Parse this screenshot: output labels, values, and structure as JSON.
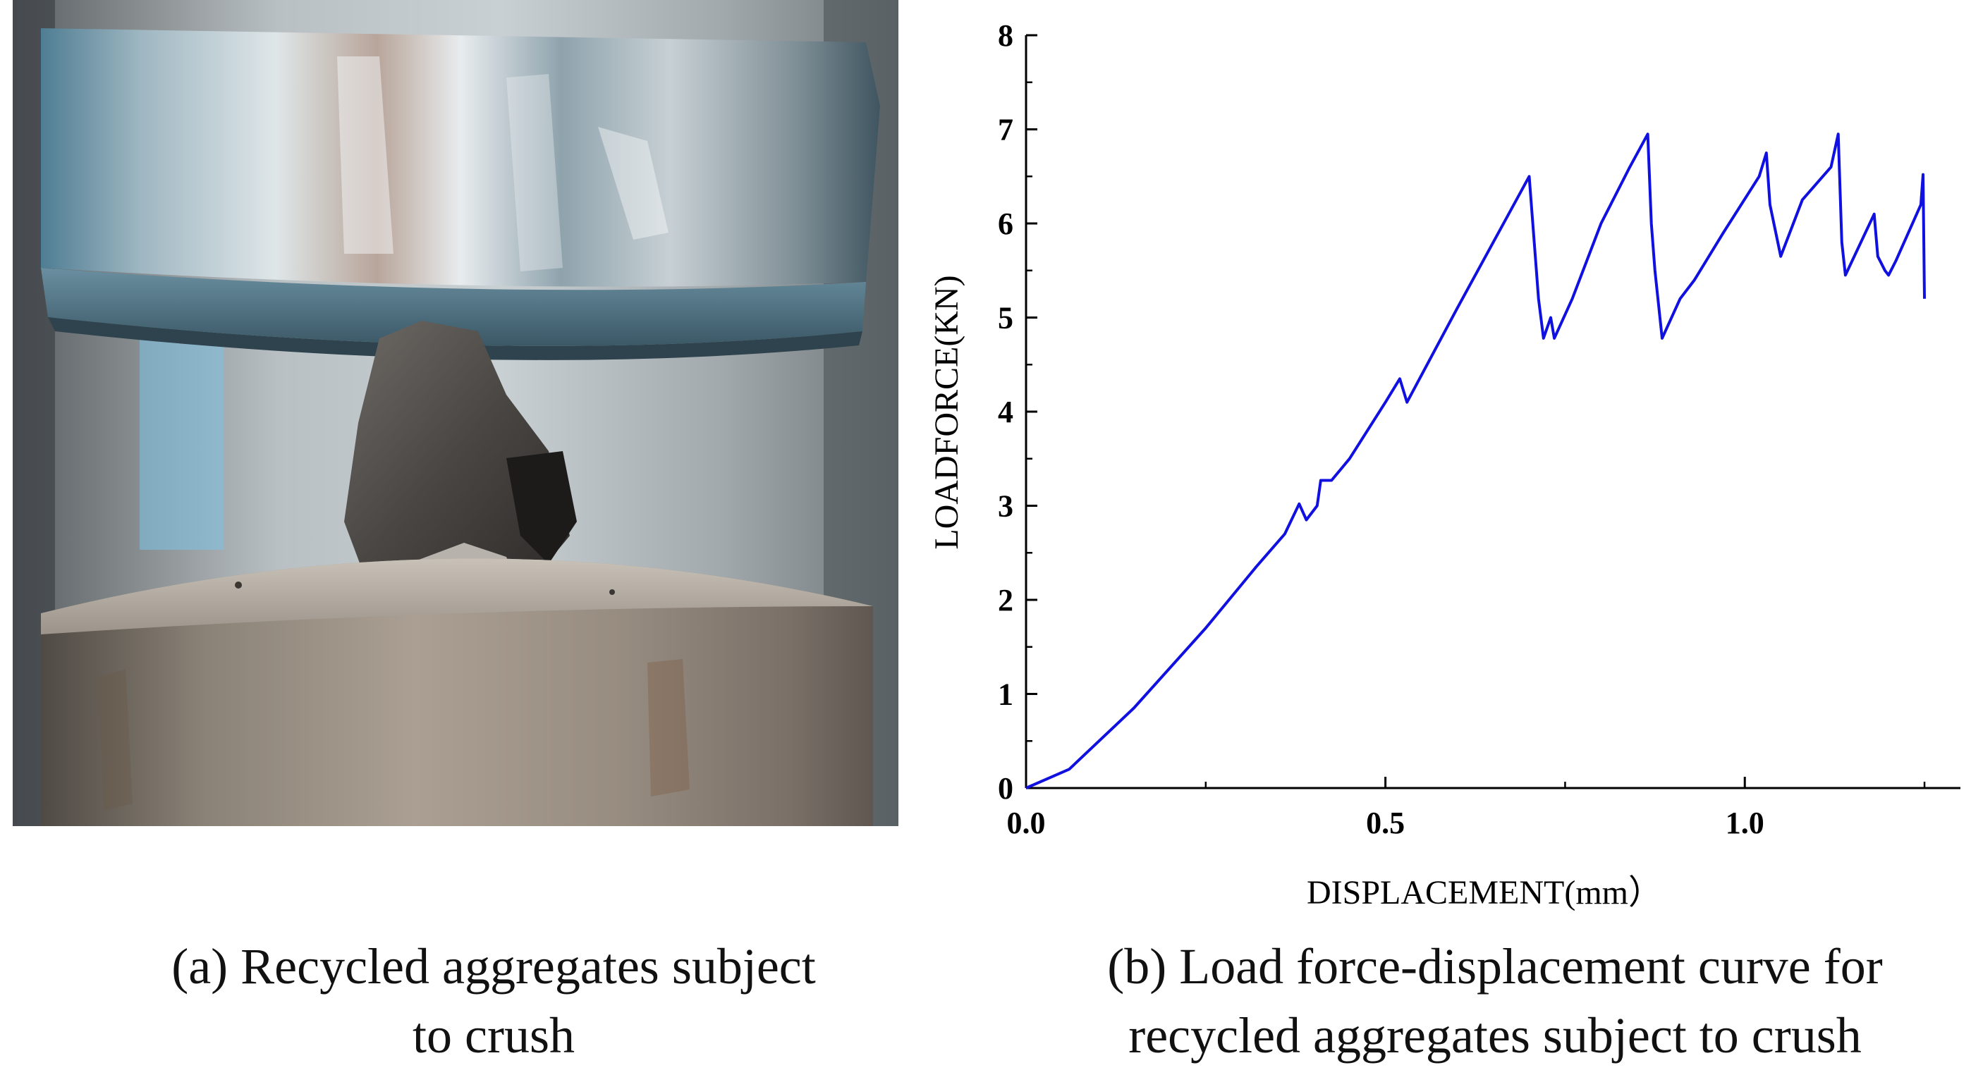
{
  "captions": {
    "a_line1": "(a) Recycled aggregates subject",
    "a_line2": "to crush",
    "b_line1": "(b) Load force-displacement curve for",
    "b_line2": "recycled aggregates subject to crush"
  },
  "colors": {
    "curve": "#1010e0",
    "axis": "#000000"
  },
  "chart_data": {
    "type": "line",
    "title": "",
    "xlabel": "DISPLACEMENT(mm）",
    "ylabel": "LOADFORCE(KN)",
    "xlim": [
      0,
      1.3
    ],
    "ylim": [
      0,
      8
    ],
    "xticks": [
      0.0,
      0.5,
      1.0
    ],
    "xtick_labels": [
      "0.0",
      "0.5",
      "1.0"
    ],
    "yticks": [
      0,
      1,
      2,
      3,
      4,
      5,
      6,
      7,
      8
    ],
    "ytick_labels": [
      "0",
      "1",
      "2",
      "3",
      "4",
      "5",
      "6",
      "7",
      "8"
    ],
    "grid": false,
    "legend": "none",
    "series": [
      {
        "x": [
          0.0,
          0.06,
          0.15,
          0.25,
          0.32,
          0.36,
          0.38,
          0.39,
          0.405,
          0.41,
          0.425,
          0.45,
          0.5,
          0.52,
          0.53,
          0.6,
          0.7,
          0.71,
          0.713,
          0.72,
          0.73,
          0.735,
          0.76,
          0.8,
          0.84,
          0.865,
          0.87,
          0.875,
          0.885,
          0.91,
          0.93,
          0.97,
          1.02,
          1.03,
          1.035,
          1.05,
          1.08,
          1.12,
          1.13,
          1.135,
          1.14,
          1.18,
          1.185,
          1.195,
          1.2,
          1.21,
          1.245,
          1.248,
          1.25
        ],
        "y": [
          0.0,
          0.2,
          0.85,
          1.7,
          2.35,
          2.7,
          3.02,
          2.85,
          3.0,
          3.27,
          3.27,
          3.5,
          4.1,
          4.35,
          4.1,
          5.1,
          6.5,
          5.5,
          5.2,
          4.78,
          5.0,
          4.78,
          5.2,
          6.0,
          6.6,
          6.95,
          6.0,
          5.5,
          4.78,
          5.2,
          5.4,
          5.9,
          6.5,
          6.75,
          6.2,
          5.65,
          6.25,
          6.6,
          6.95,
          5.8,
          5.45,
          6.1,
          5.65,
          5.5,
          5.45,
          5.6,
          6.2,
          6.52,
          5.2
        ]
      }
    ]
  }
}
